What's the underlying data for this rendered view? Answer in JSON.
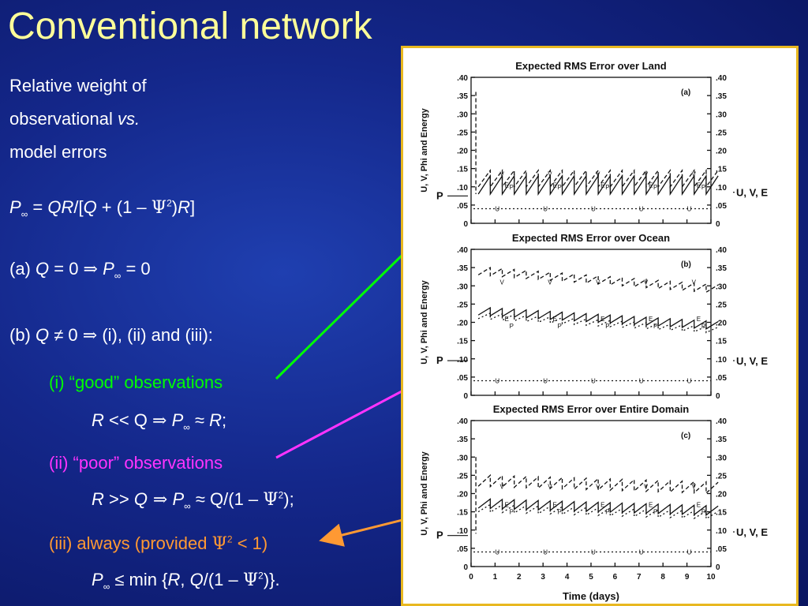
{
  "title": "Conventional network",
  "intro": {
    "line1": "Relative weight of",
    "line2_a": "observational ",
    "line2_b": "vs.",
    "line3": "model errors"
  },
  "formula": {
    "p_inf": "P",
    "inf": "∞",
    "eq": " = ",
    "qr": "QR",
    "bracket_open": "/[",
    "q": "Q",
    "plus": " + (1 – ",
    "psi": "Ψ",
    "sq": "2",
    "close": ")",
    "r": "R",
    "bracket_close": "]"
  },
  "case_a": {
    "label": "(a) ",
    "q": "Q",
    "eq0": " = 0 ",
    "implies": "⇒",
    "p": " P",
    "inf": "∞",
    "rest": " = 0"
  },
  "case_b": {
    "label": "(b) ",
    "q": "Q",
    "neq": " ≠ 0 ",
    "implies": "⇒",
    "rest": " (i), (ii) and (iii):"
  },
  "case_i": {
    "label": "(i)   “good” observations",
    "r": "R",
    "ll": " << Q ",
    "implies": "⇒",
    "p": " P",
    "inf": "∞",
    "approx": " ≈ ",
    "r2": "R",
    "semi": ";"
  },
  "case_ii": {
    "label": "(ii) “poor” observations",
    "r": "R",
    "gg": " >> ",
    "q": "Q",
    "implies": " ⇒",
    "p": " P",
    "inf": "∞",
    "approx": " ≈ Q/(1 – ",
    "psi": "Ψ",
    "sq": "2",
    "close": ");"
  },
  "case_iii": {
    "label": "(iii) always  (provided ",
    "psi": "Ψ",
    "sq": "2",
    "close": " < 1)",
    "p": "P",
    "inf": "∞",
    "min": " ≤ min {",
    "r": "R",
    "comma": ", ",
    "q": "Q",
    "frac": "/(1 – ",
    "psi2": "Ψ",
    "sq2": "2",
    "end": ")}."
  },
  "colors": {
    "title": "#ffff99",
    "green": "#00ff00",
    "magenta": "#ff33ff",
    "orange": "#ff9933",
    "frame": "#e8b820"
  },
  "chart_data": [
    {
      "type": "line",
      "title": "Expected RMS Error over Land",
      "tag": "(a)",
      "ylabel": "U, V, Phi and Energy",
      "yticks": [
        ".40",
        ".35",
        ".30",
        ".25",
        ".20",
        ".15",
        ".10",
        ".05",
        "0"
      ],
      "ylim": [
        0,
        0.4
      ],
      "xlim": [
        0,
        10
      ],
      "left_marker": "P",
      "right_label": "U, V, E",
      "series_labels": [
        "U",
        "V",
        "E",
        "P"
      ]
    },
    {
      "type": "line",
      "title": "Expected RMS Error over Ocean",
      "tag": "(b)",
      "ylabel": "U, V, Phi and Energy",
      "yticks": [
        ".40",
        ".35",
        ".30",
        ".25",
        ".20",
        ".15",
        ".10",
        ".05",
        "0"
      ],
      "ylim": [
        0,
        0.4
      ],
      "xlim": [
        0,
        10
      ],
      "left_marker": "P",
      "right_label": "U, V, E",
      "series_labels": [
        "U",
        "V",
        "E",
        "P"
      ]
    },
    {
      "type": "line",
      "title": "Expected RMS Error over Entire Domain",
      "tag": "(c)",
      "ylabel": "U, V, Phi and Energy",
      "yticks": [
        ".40",
        ".35",
        ".30",
        ".25",
        ".20",
        ".15",
        ".10",
        ".05",
        "0"
      ],
      "ylim": [
        0,
        0.4
      ],
      "xlim": [
        0,
        10
      ],
      "xticks": [
        "0",
        "1",
        "2",
        "3",
        "4",
        "5",
        "6",
        "7",
        "8",
        "9",
        "10"
      ],
      "xlabel": "Time (days)",
      "left_marker": "P",
      "right_label": "U, V, E",
      "series_labels": [
        "U",
        "V",
        "E",
        "P"
      ]
    }
  ]
}
